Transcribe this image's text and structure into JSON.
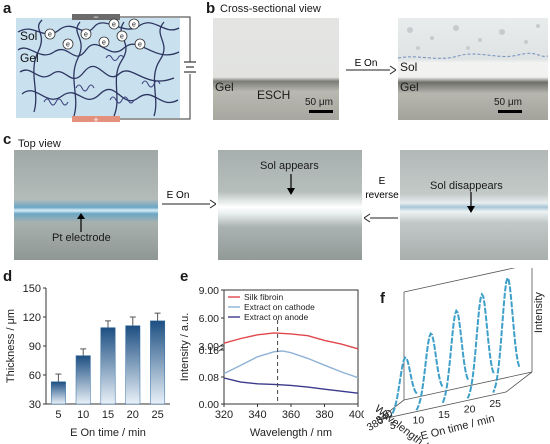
{
  "panels": {
    "a": {
      "label": "a",
      "sol": "Sol",
      "gel": "Gel",
      "electrons": [
        "e",
        "e",
        "e",
        "e",
        "e",
        "e",
        "e",
        "e"
      ],
      "cathode_sign": "−",
      "anode_sign": "+"
    },
    "b": {
      "label": "b",
      "title": "Cross-sectional view",
      "arrow_label": "E On",
      "left_gel": "Gel",
      "left_esch": "ESCH",
      "left_scale": "50 μm",
      "right_sol": "Sol",
      "right_gel": "Gel",
      "right_scale": "50 μm"
    },
    "c": {
      "label": "c",
      "title": "Top view",
      "electrode": "Pt electrode",
      "arrow1": "E On",
      "sol_appears": "Sol appears",
      "arrow2_line1": "E",
      "arrow2_line2": "reverse",
      "sol_disappears": "Sol disappears"
    },
    "d": {
      "label": "d"
    },
    "e": {
      "label": "e"
    },
    "f": {
      "label": "f"
    }
  },
  "chart_data": [
    {
      "panel": "d",
      "type": "bar",
      "categories": [
        "5",
        "10",
        "15",
        "20",
        "25"
      ],
      "values": [
        53,
        80,
        109,
        111,
        116
      ],
      "errors": [
        8,
        7,
        7,
        9,
        8
      ],
      "xlabel": "E On time / min",
      "ylabel": "Thickness / μm",
      "ylim": [
        30,
        150
      ],
      "yticks": [
        "30",
        "60",
        "90",
        "120",
        "150"
      ],
      "bar_color": "#2f6aa0"
    },
    {
      "panel": "e",
      "type": "line",
      "xlabel": "Wavelength / nm",
      "ylabel": "Intensity / a.u.",
      "xlim": [
        320,
        400
      ],
      "xticks": [
        "320",
        "340",
        "360",
        "380",
        "400"
      ],
      "yticks": [
        "0.00",
        "0.08",
        "0.16",
        "3.00",
        "6.00",
        "9.00"
      ],
      "axis_break": "0.16 – 3.00",
      "marker_x": 352,
      "series": [
        {
          "name": "Silk fibroin",
          "color": "#e0474c",
          "points": [
            [
              320,
              3.3
            ],
            [
              330,
              3.8
            ],
            [
              340,
              4.2
            ],
            [
              350,
              4.4
            ],
            [
              360,
              4.3
            ],
            [
              370,
              4.1
            ],
            [
              380,
              3.6
            ],
            [
              390,
              3.2
            ],
            [
              400,
              2.7
            ]
          ]
        },
        {
          "name": "Extract on cathode",
          "color": "#8fb2d6",
          "points": [
            [
              320,
              0.09
            ],
            [
              330,
              0.115
            ],
            [
              340,
              0.14
            ],
            [
              350,
              0.155
            ],
            [
              355,
              0.157
            ],
            [
              360,
              0.152
            ],
            [
              370,
              0.135
            ],
            [
              380,
              0.115
            ],
            [
              390,
              0.095
            ],
            [
              400,
              0.078
            ]
          ]
        },
        {
          "name": "Extract on anode",
          "color": "#3b3a8c",
          "points": [
            [
              320,
              0.077
            ],
            [
              330,
              0.065
            ],
            [
              340,
              0.06
            ],
            [
              350,
              0.058
            ],
            [
              360,
              0.055
            ],
            [
              370,
              0.05
            ],
            [
              380,
              0.044
            ],
            [
              390,
              0.038
            ],
            [
              400,
              0.032
            ]
          ]
        }
      ]
    },
    {
      "panel": "f",
      "type": "line",
      "zlabel": "Intensity",
      "ylabel": "Wavelength / nm",
      "yticks": [
        "340",
        "380"
      ],
      "xlabel": "E On time / min",
      "xticks": [
        "5",
        "10",
        "15",
        "20",
        "25"
      ],
      "series_times": [
        5,
        10,
        15,
        20,
        25
      ],
      "series_peak": [
        0.45,
        0.62,
        0.78,
        0.88,
        0.98
      ],
      "color": "#3e9fc9"
    }
  ]
}
